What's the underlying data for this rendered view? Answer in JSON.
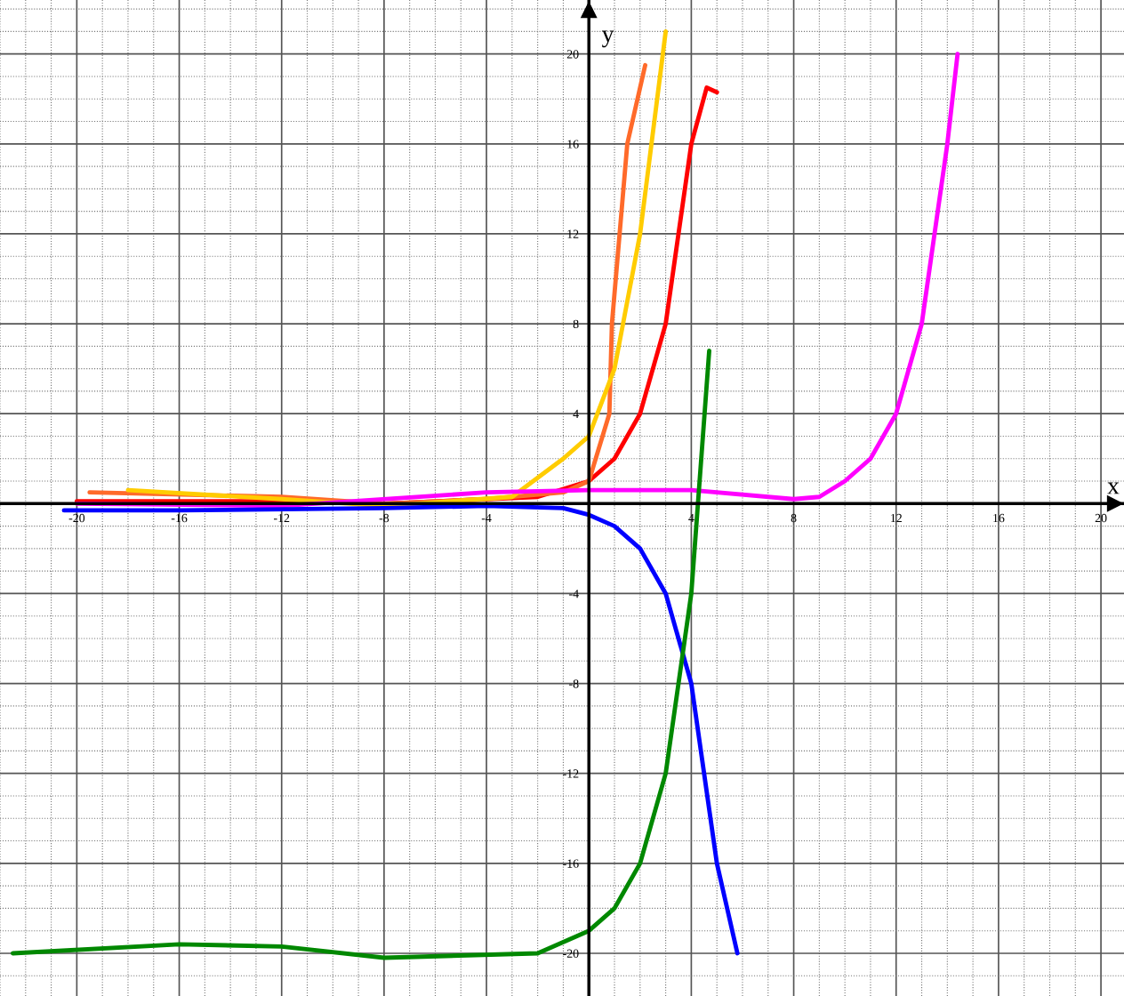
{
  "chart_data": {
    "type": "line",
    "xlabel": "x",
    "ylabel": "y",
    "xlim": [
      -23,
      20.9
    ],
    "ylim": [
      -21.9,
      22.4
    ],
    "xticks": [
      -20,
      -16,
      -12,
      -8,
      -4,
      4,
      8,
      12,
      16,
      20
    ],
    "yticks": [
      -20,
      -16,
      -12,
      -8,
      -4,
      4,
      8,
      12,
      16,
      20
    ],
    "grid": true,
    "marker": "none",
    "line_style": "solid",
    "series": [
      {
        "color": "#ff0000",
        "x": [
          -20,
          -12,
          -8,
          -4,
          -2,
          0,
          1,
          2,
          3,
          4,
          4.6,
          5
        ],
        "values": [
          0.1,
          0.1,
          0,
          0.2,
          0.3,
          1,
          2,
          4,
          8,
          16,
          18.5,
          18.3
        ]
      },
      {
        "color": "#ff6a2a",
        "x": [
          -19.5,
          -12,
          -8,
          -4,
          -1,
          0,
          0.8,
          0.9,
          1.5,
          2.2
        ],
        "values": [
          0.5,
          0.3,
          0,
          0.2,
          0.5,
          1,
          4,
          8,
          16,
          19.5
        ]
      },
      {
        "color": "#ffcc00",
        "x": [
          -18,
          -12,
          -8,
          -3,
          -1,
          0,
          1,
          2,
          3
        ],
        "values": [
          0.6,
          0.2,
          -0.1,
          0.3,
          2,
          3,
          6,
          12,
          21
        ]
      },
      {
        "color": "#ff00ff",
        "x": [
          -20,
          -12,
          -4,
          0,
          4,
          8,
          9,
          10,
          11,
          12,
          13,
          14,
          14.4
        ],
        "values": [
          0,
          -0.1,
          0.5,
          0.6,
          0.6,
          0.2,
          0.3,
          1,
          2,
          4,
          8,
          16,
          20
        ]
      },
      {
        "color": "#0000ff",
        "x": [
          -20.5,
          -16,
          -8,
          -4,
          -1,
          0,
          1,
          2,
          3,
          4,
          5,
          5.8
        ],
        "values": [
          -0.3,
          -0.3,
          -0.2,
          -0.1,
          -0.2,
          -0.5,
          -1,
          -2,
          -4,
          -8,
          -16,
          -20
        ]
      },
      {
        "color": "#008800",
        "x": [
          -22.5,
          -16,
          -12,
          -8,
          -2,
          0,
          1,
          2,
          3,
          4,
          4.7
        ],
        "values": [
          -20,
          -19.6,
          -19.7,
          -20.2,
          -20,
          -19,
          -18,
          -16,
          -12,
          -4,
          6.8
        ]
      }
    ]
  }
}
